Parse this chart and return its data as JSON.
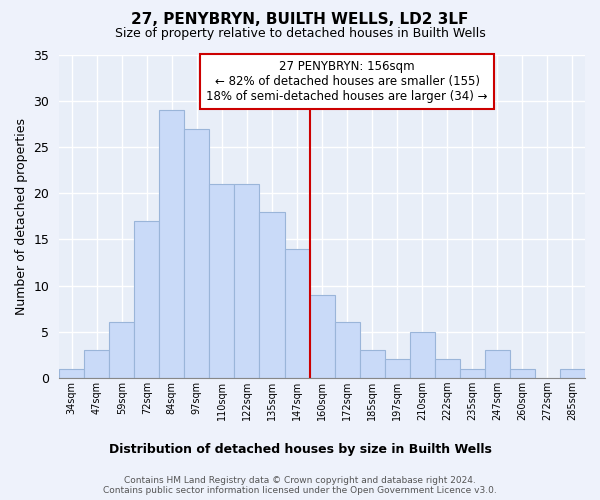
{
  "title": "27, PENYBRYN, BUILTH WELLS, LD2 3LF",
  "subtitle": "Size of property relative to detached houses in Builth Wells",
  "xlabel": "Distribution of detached houses by size in Builth Wells",
  "ylabel": "Number of detached properties",
  "bar_labels": [
    "34sqm",
    "47sqm",
    "59sqm",
    "72sqm",
    "84sqm",
    "97sqm",
    "110sqm",
    "122sqm",
    "135sqm",
    "147sqm",
    "160sqm",
    "172sqm",
    "185sqm",
    "197sqm",
    "210sqm",
    "222sqm",
    "235sqm",
    "247sqm",
    "260sqm",
    "272sqm",
    "285sqm"
  ],
  "bar_values": [
    1,
    3,
    6,
    17,
    29,
    27,
    21,
    21,
    18,
    14,
    9,
    6,
    3,
    2,
    5,
    2,
    1,
    3,
    1,
    0,
    1
  ],
  "bar_color": "#c9daf8",
  "bar_edge_color": "#9ab5d9",
  "annotation_line1": "27 PENYBRYN: 156sqm",
  "annotation_line2": "← 82% of detached houses are smaller (155)",
  "annotation_line3": "18% of semi-detached houses are larger (34) →",
  "annotation_box_color": "#ffffff",
  "annotation_box_edge": "#cc0000",
  "ylim": [
    0,
    35
  ],
  "yticks": [
    0,
    5,
    10,
    15,
    20,
    25,
    30,
    35
  ],
  "red_line_x": 9.5,
  "footer1": "Contains HM Land Registry data © Crown copyright and database right 2024.",
  "footer2": "Contains public sector information licensed under the Open Government Licence v3.0.",
  "bg_color": "#eef2fb",
  "grid_color": "#ffffff",
  "plot_bg": "#e8eef8"
}
